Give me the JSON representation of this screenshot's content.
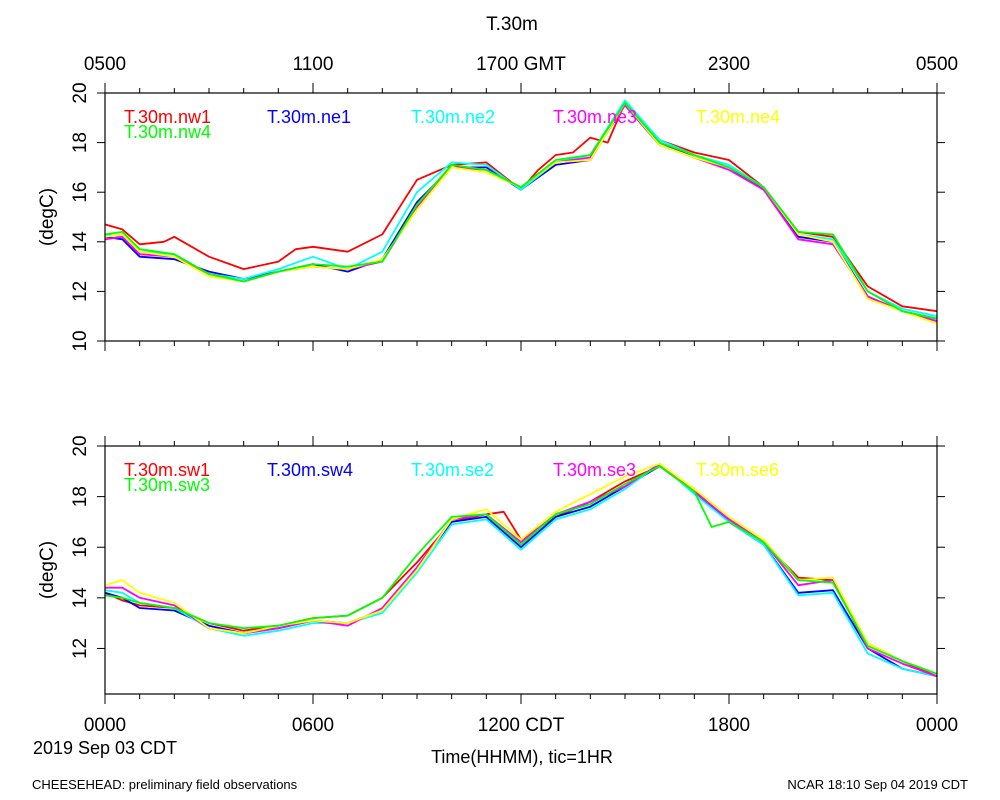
{
  "title": "T.30m",
  "top_axis_ticks": [
    "0500",
    "1100",
    "1700 GMT",
    "2300",
    "0500"
  ],
  "bottom_axis_ticks": [
    "0000",
    "0600",
    "1200 CDT",
    "1800",
    "0000"
  ],
  "date_label": "2019 Sep 03 CDT",
  "xlabel": "Time(HHMM), tic=1HR",
  "footer_left": "CHEESEHEAD: preliminary field observations",
  "footer_right": "NCAR 18:10 Sep 04 2019 CDT",
  "chart_data": [
    {
      "type": "line",
      "panel": "top",
      "ylabel": "(degC)",
      "xlim": [
        0,
        24
      ],
      "ylim": [
        10,
        20
      ],
      "yticks": [
        10,
        12,
        14,
        16,
        18,
        20
      ],
      "series": [
        {
          "name": "T.30m.nw1",
          "color": "#ff0000",
          "x": [
            0,
            0.5,
            1,
            1.7,
            2,
            3,
            4,
            5,
            5.5,
            6,
            7,
            8,
            9,
            10,
            11,
            12,
            12.5,
            13,
            13.5,
            14,
            14.5,
            15,
            16,
            17,
            18,
            19,
            20,
            21,
            22,
            23,
            24
          ],
          "values": [
            14.7,
            14.5,
            13.9,
            14,
            14.2,
            13.4,
            12.9,
            13.2,
            13.7,
            13.8,
            13.6,
            14.3,
            16.5,
            17.1,
            17.2,
            16.1,
            16.9,
            17.5,
            17.6,
            18.2,
            18,
            19.6,
            18.1,
            17.6,
            17.3,
            16.2,
            14.4,
            14.2,
            12.2,
            11.4,
            11.2
          ]
        },
        {
          "name": "T.30m.ne1",
          "color": "#0000ff",
          "x": [
            0,
            0.5,
            1,
            2,
            3,
            4,
            5,
            6,
            7,
            8,
            9,
            10,
            11,
            12,
            13,
            14,
            15,
            16,
            17,
            18,
            19,
            20,
            21,
            22,
            23,
            24
          ],
          "values": [
            14.2,
            14.1,
            13.4,
            13.3,
            12.8,
            12.5,
            12.8,
            13.1,
            12.8,
            13.3,
            15.6,
            17,
            17,
            16.1,
            17.1,
            17.3,
            19.6,
            18,
            17.4,
            17,
            16.1,
            14.2,
            14,
            11.8,
            11.2,
            10.9
          ]
        },
        {
          "name": "T.30m.ne2",
          "color": "#00ffff",
          "x": [
            0,
            0.5,
            1,
            2,
            3,
            4,
            5,
            6,
            7,
            8,
            9,
            10,
            11,
            12,
            13,
            14,
            15,
            16,
            17,
            18,
            19,
            20,
            21,
            22,
            23,
            24
          ],
          "values": [
            14.3,
            14.2,
            13.6,
            13.5,
            12.7,
            12.5,
            12.9,
            13.4,
            12.9,
            13.6,
            16,
            17.2,
            17.1,
            16.1,
            17.2,
            17.5,
            19.7,
            18.1,
            17.5,
            17.1,
            16.2,
            14.3,
            14.1,
            12,
            11.3,
            11
          ]
        },
        {
          "name": "T.30m.ne3",
          "color": "#ff00ff",
          "x": [
            0,
            0.5,
            1,
            2,
            3,
            4,
            5,
            6,
            7,
            8,
            9,
            10,
            11,
            12,
            13,
            14,
            15,
            16,
            17,
            18,
            19,
            20,
            21,
            22,
            23,
            24
          ],
          "values": [
            14.1,
            14.2,
            13.5,
            13.4,
            12.7,
            12.4,
            12.8,
            13,
            12.9,
            13.2,
            15.4,
            17,
            16.9,
            16.2,
            17.2,
            17.4,
            19.5,
            17.9,
            17.4,
            16.9,
            16.1,
            14.1,
            13.9,
            11.8,
            11.2,
            10.8
          ]
        },
        {
          "name": "T.30m.ne4",
          "color": "#ffff00",
          "x": [
            0,
            0.5,
            1,
            2,
            3,
            4,
            5,
            6,
            7,
            8,
            9,
            10,
            11,
            12,
            13,
            14,
            15,
            16,
            17,
            18,
            19,
            20,
            21,
            22,
            23,
            24
          ],
          "values": [
            14.2,
            14.3,
            13.6,
            13.4,
            12.6,
            12.4,
            12.8,
            13,
            12.9,
            13.3,
            15.3,
            17,
            16.8,
            16.2,
            17.2,
            17.3,
            19.6,
            17.9,
            17.4,
            17,
            16.2,
            14.3,
            14,
            11.7,
            11.2,
            10.7
          ]
        },
        {
          "name": "T.30m.nw4",
          "color": "#00ff00",
          "x": [
            0,
            0.5,
            1,
            2,
            3,
            4,
            5,
            6,
            7,
            8,
            9,
            10,
            11,
            12,
            13,
            14,
            15,
            16,
            17,
            18,
            19,
            20,
            21,
            22,
            23,
            24
          ],
          "values": [
            14.3,
            14.4,
            13.7,
            13.5,
            12.7,
            12.4,
            12.8,
            13.1,
            13,
            13.2,
            15.5,
            17.1,
            16.9,
            16.2,
            17.3,
            17.5,
            19.6,
            18,
            17.5,
            17,
            16.2,
            14.4,
            14.3,
            12,
            11.2,
            10.9
          ]
        }
      ]
    },
    {
      "type": "line",
      "panel": "bottom",
      "ylabel": "(degC)",
      "xlim": [
        0,
        24
      ],
      "ylim": [
        10.2,
        20
      ],
      "yticks": [
        12,
        14,
        16,
        18,
        20
      ],
      "series": [
        {
          "name": "T.30m.sw1",
          "color": "#ff0000",
          "x": [
            0,
            0.5,
            1,
            2,
            3,
            4,
            5,
            6,
            7,
            8,
            9,
            10,
            11,
            11.5,
            12,
            13,
            14,
            15,
            16,
            17,
            17.5,
            18,
            19,
            20,
            21,
            22,
            23,
            24
          ],
          "values": [
            14.2,
            13.9,
            13.7,
            13.6,
            13,
            12.7,
            12.9,
            13.2,
            13.3,
            14,
            15.4,
            17,
            17.3,
            17.4,
            16.3,
            17.2,
            17.8,
            18.6,
            19.2,
            18.3,
            17.6,
            17.1,
            16.2,
            14.8,
            14.7,
            12.2,
            11.5,
            10.9
          ]
        },
        {
          "name": "T.30m.sw4",
          "color": "#0000ff",
          "x": [
            0,
            0.5,
            1,
            2,
            3,
            4,
            5,
            6,
            7,
            8,
            9,
            10,
            11,
            12,
            13,
            14,
            15,
            16,
            17,
            17.5,
            18,
            19,
            20,
            21,
            22,
            23,
            24
          ],
          "values": [
            14.2,
            14,
            13.6,
            13.5,
            12.9,
            12.6,
            12.8,
            13.1,
            13,
            13.5,
            15.2,
            17,
            17.2,
            16,
            17.2,
            17.6,
            18.4,
            19.2,
            18.2,
            17.6,
            17,
            16.1,
            14.2,
            14.3,
            12,
            11.2,
            10.9
          ]
        },
        {
          "name": "T.30m.se2",
          "color": "#00ffff",
          "x": [
            0,
            0.5,
            1,
            2,
            3,
            4,
            5,
            6,
            7,
            8,
            9,
            10,
            11,
            12,
            13,
            14,
            15,
            16,
            17,
            18,
            19,
            20,
            21,
            22,
            23,
            24
          ],
          "values": [
            14.3,
            14.2,
            13.8,
            13.6,
            12.8,
            12.5,
            12.7,
            13,
            13,
            13.4,
            15,
            16.9,
            17.1,
            15.9,
            17.1,
            17.5,
            18.3,
            19.3,
            18.1,
            17,
            16.1,
            14.1,
            14.2,
            11.8,
            11.2,
            10.9
          ]
        },
        {
          "name": "T.30m.se3",
          "color": "#ff00ff",
          "x": [
            0,
            0.5,
            1,
            2,
            3,
            4,
            5,
            6,
            7,
            8,
            9,
            10,
            11,
            12,
            13,
            14,
            15,
            16,
            17,
            18,
            19,
            20,
            21,
            22,
            23,
            24
          ],
          "values": [
            14.4,
            14.4,
            14,
            13.7,
            12.8,
            12.6,
            12.8,
            13.1,
            12.9,
            13.6,
            15.2,
            17.1,
            17.3,
            16.2,
            17.3,
            17.8,
            18.4,
            19.3,
            18.2,
            17.1,
            16.2,
            14.5,
            14.7,
            12,
            11.4,
            10.9
          ]
        },
        {
          "name": "T.30m.se6",
          "color": "#ffff00",
          "x": [
            0,
            0.5,
            1,
            2,
            3,
            4,
            5,
            6,
            7,
            8,
            9,
            10,
            11,
            12,
            13,
            14,
            15,
            16,
            17,
            18,
            19,
            20,
            21,
            22,
            23,
            24
          ],
          "values": [
            14.5,
            14.7,
            14.2,
            13.8,
            12.8,
            12.6,
            12.9,
            13.1,
            13,
            13.5,
            15.1,
            17.1,
            17.5,
            16.3,
            17.4,
            18.1,
            18.8,
            19.3,
            18.3,
            17.2,
            16.3,
            14.7,
            14.8,
            12.2,
            11.5,
            11
          ]
        },
        {
          "name": "T.30m.sw3",
          "color": "#00ff00",
          "x": [
            0,
            0.5,
            1,
            2,
            3,
            4,
            5,
            6,
            7,
            8,
            9,
            10,
            11,
            12,
            13,
            14,
            15,
            16,
            17,
            17.5,
            18,
            19,
            20,
            21,
            22,
            23,
            24
          ],
          "values": [
            14.1,
            14,
            13.8,
            13.6,
            13,
            12.8,
            12.9,
            13.2,
            13.3,
            14,
            15.7,
            17.2,
            17.3,
            16.1,
            17.3,
            17.7,
            18.5,
            19.2,
            18.2,
            16.8,
            17,
            16.2,
            14.7,
            14.6,
            12.1,
            11.5,
            11
          ]
        }
      ]
    }
  ]
}
